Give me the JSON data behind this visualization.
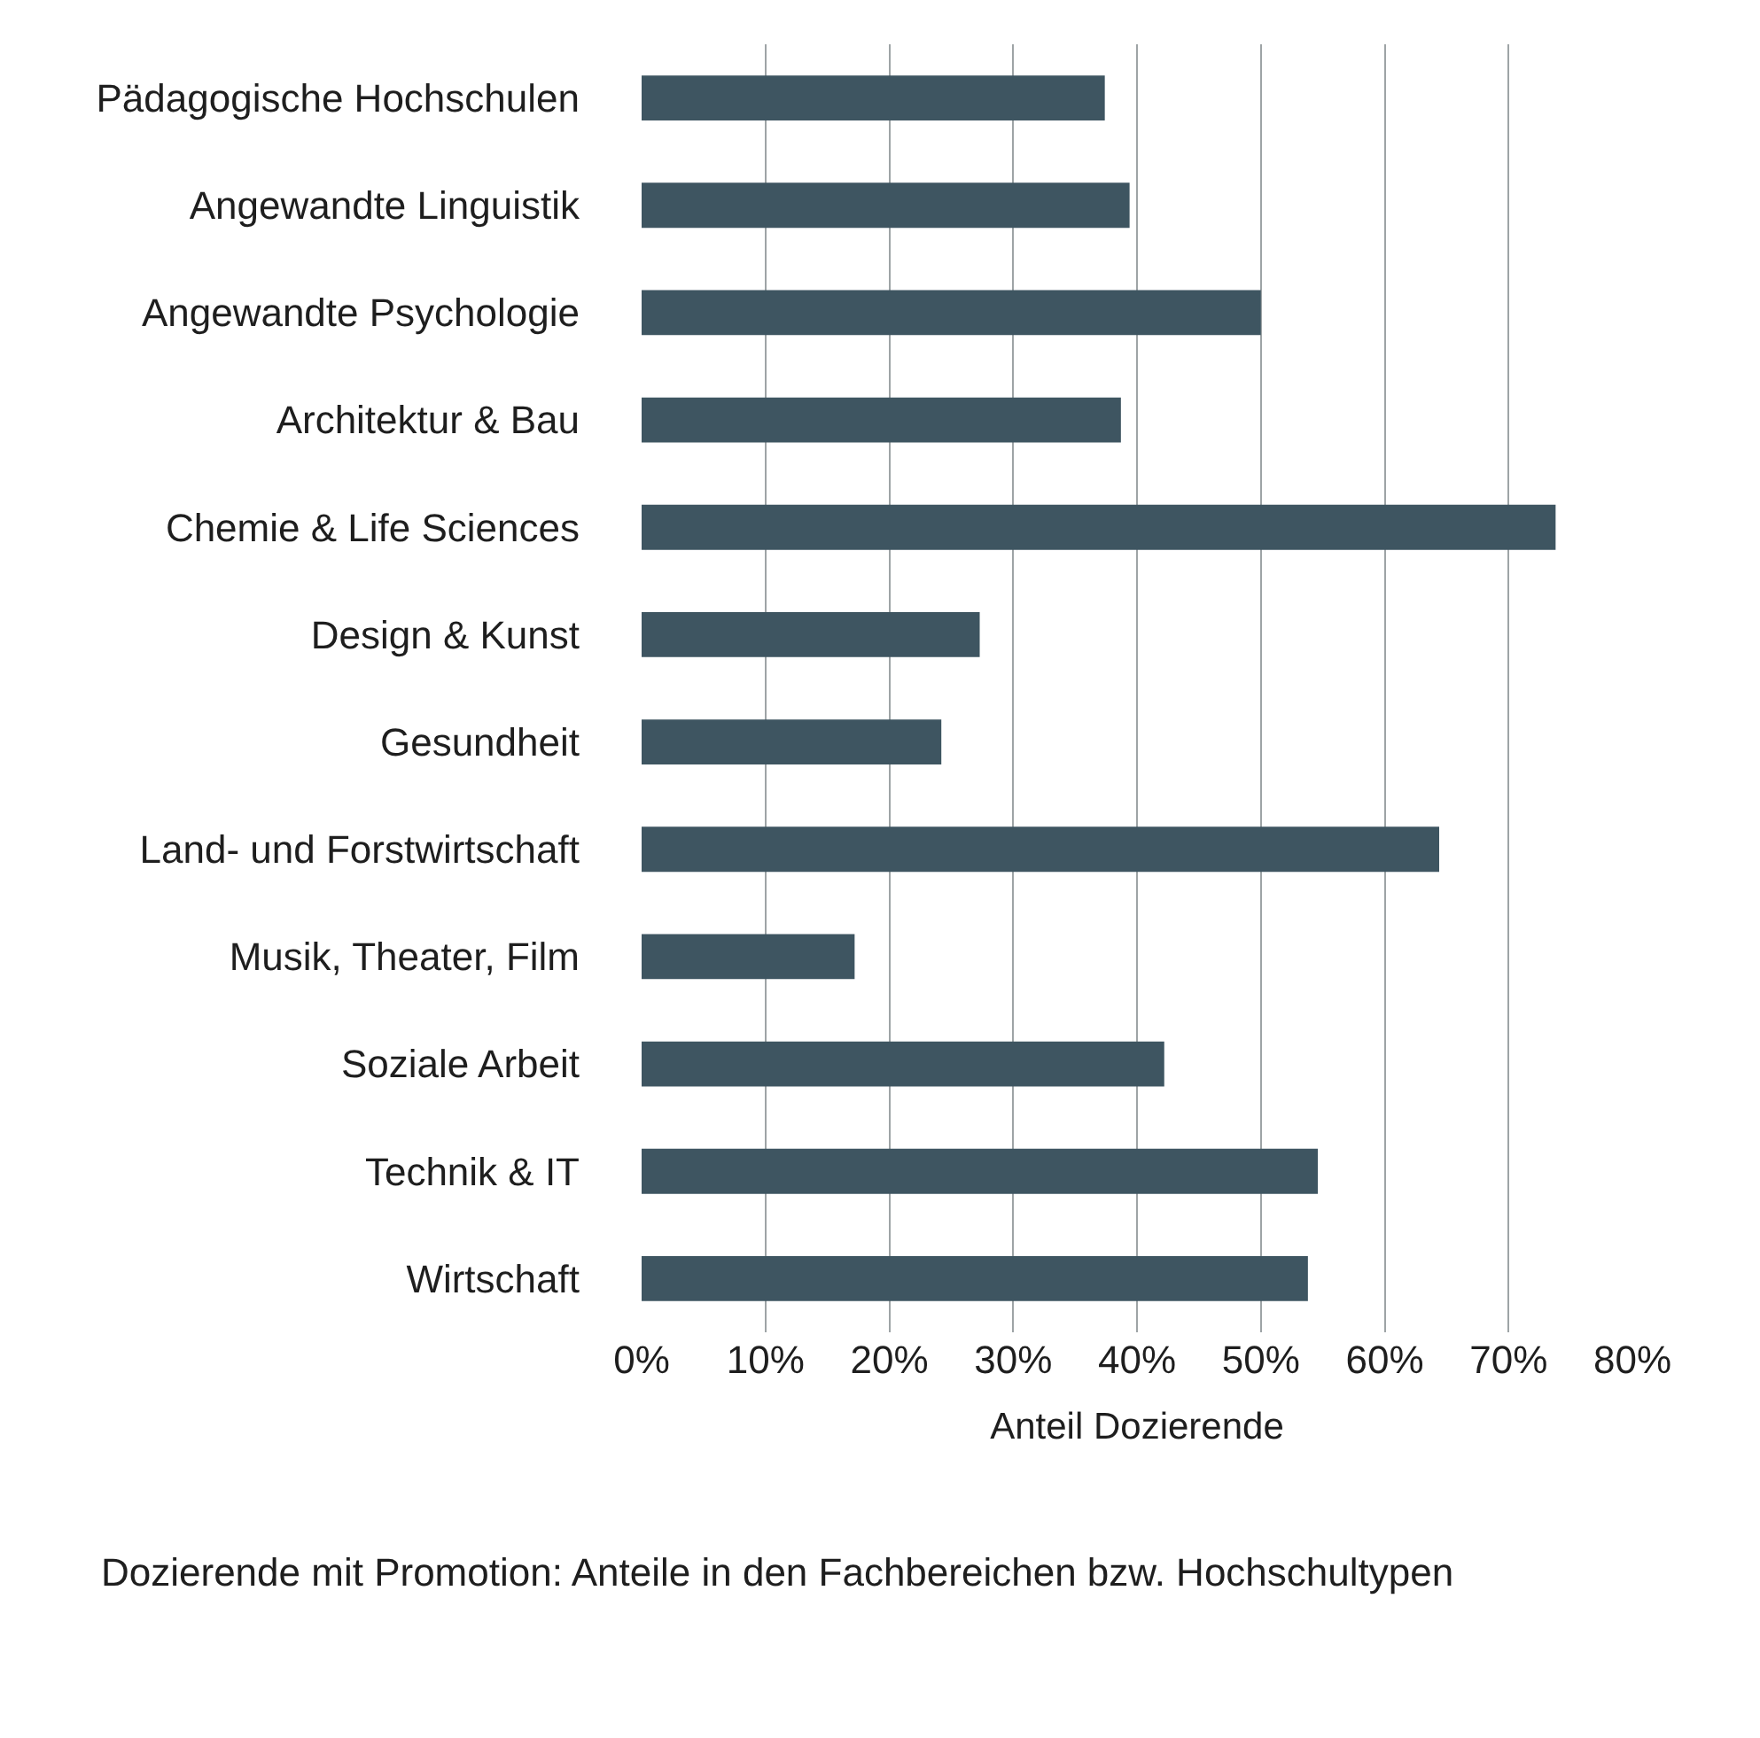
{
  "chart_data": {
    "type": "bar",
    "orientation": "horizontal",
    "xlabel": "Anteil Dozierende",
    "annotations": [
      "Dozierende mit Promotion: Anteile in den Fachbereichen bzw. Hochschultypen"
    ],
    "categories": [
      "Pädagogische Hochschulen",
      "Angewandte Linguistik",
      "Angewandte Psychologie",
      "Architektur & Bau",
      "Chemie & Life Sciences",
      "Design & Kunst",
      "Gesundheit",
      "Land- und Forstwirtschaft",
      "Musik, Theater, Film",
      "Soziale Arbeit",
      "Technik & IT",
      "Wirtschaft"
    ],
    "values": [
      37.4,
      39.4,
      50.0,
      38.7,
      73.8,
      27.3,
      24.2,
      64.4,
      17.2,
      42.2,
      54.6,
      53.8
    ],
    "color": "#3e5561",
    "xlim": [
      0,
      80
    ],
    "xticks": [
      {
        "value": 0,
        "label": "0%"
      },
      {
        "value": 10,
        "label": "10%"
      },
      {
        "value": 20,
        "label": "20%"
      },
      {
        "value": 30,
        "label": "30%"
      },
      {
        "value": 40,
        "label": "40%"
      },
      {
        "value": 50,
        "label": "50%"
      },
      {
        "value": 60,
        "label": "60%"
      },
      {
        "value": 70,
        "label": "70%"
      },
      {
        "value": 80,
        "label": "80%"
      }
    ],
    "grid": "x"
  }
}
